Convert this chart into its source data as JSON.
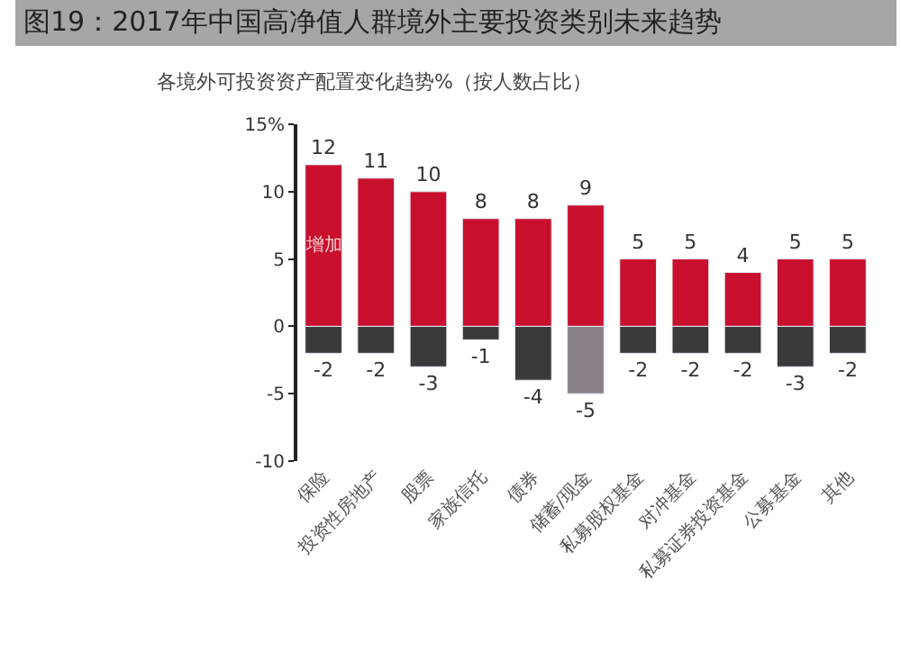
{
  "chart_data": {
    "type": "bar",
    "title": "图19：2017年中国高净值人群境外主要投资类别未来趋势",
    "subtitle": "各境外可投资资产配置变化趋势%（按人数占比）",
    "categories": [
      "保险",
      "投资性房地产",
      "股票",
      "家族信托",
      "债券",
      "储蓄/现金",
      "私募股权基金",
      "对冲基金",
      "私募证券投资基金",
      "公募基金",
      "其他"
    ],
    "stacked": true,
    "data_labels": true,
    "legend": false,
    "series": [
      {
        "name": "增加",
        "color": "#c8102e",
        "values": [
          12,
          11,
          10,
          8,
          8,
          9,
          5,
          5,
          4,
          5,
          5
        ]
      },
      {
        "colors": [
          "#3a3a3a",
          "#3a3a3a",
          "#3a3a3a",
          "#3a3a3a",
          "#3a3a3a",
          "#8a8088",
          "#3a3a3a",
          "#3a3a3a",
          "#3a3a3a",
          "#3a3a3a",
          "#3a3a3a"
        ],
        "values": [
          -2,
          -2,
          -3,
          -1,
          -4,
          -5,
          -2,
          -2,
          -2,
          -3,
          -2
        ]
      }
    ],
    "ylim": [
      -10,
      15
    ],
    "yticks": [
      {
        "value": 15,
        "label": "15%"
      },
      10,
      5,
      0,
      -5,
      -10
    ]
  }
}
